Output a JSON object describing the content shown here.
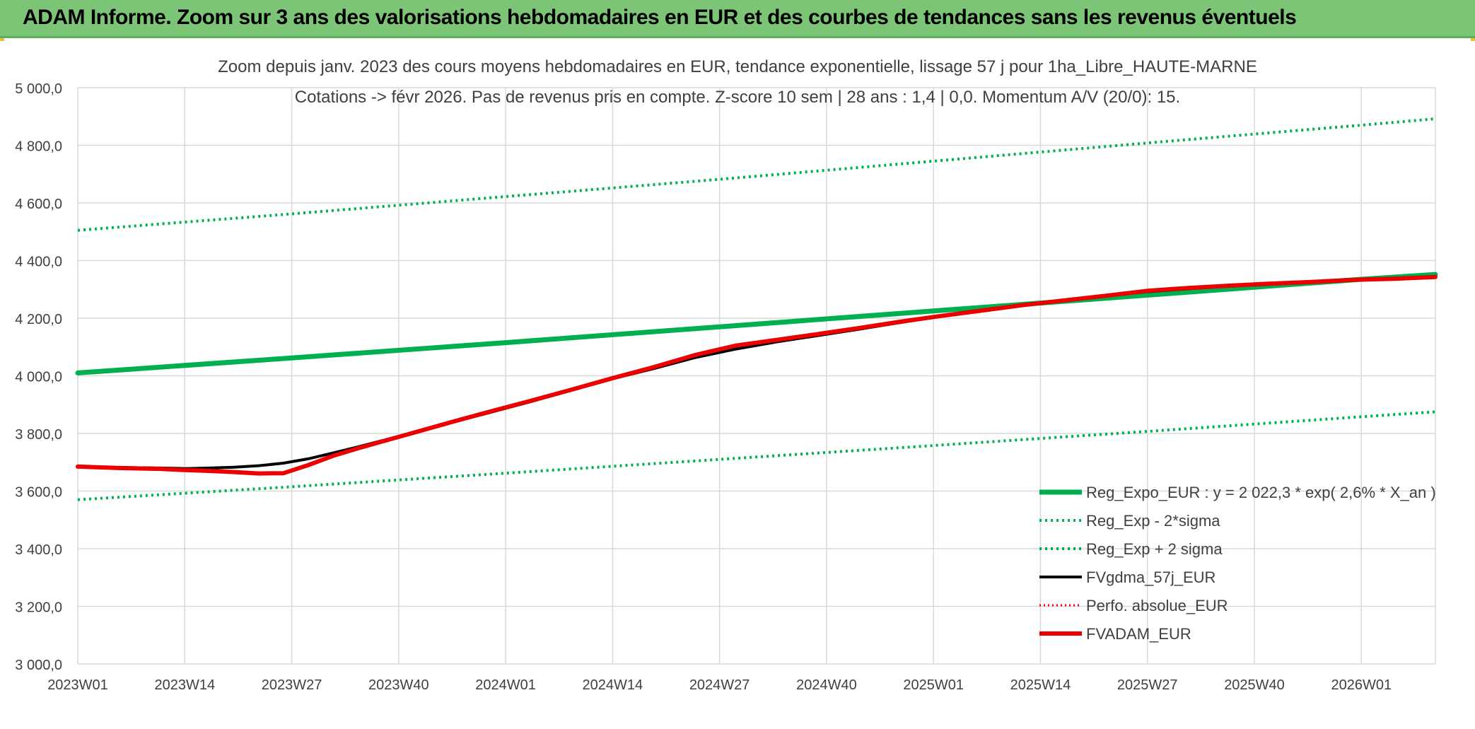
{
  "banner": {
    "title": "ADAM Informe. Zoom sur 3 ans des valorisations hebdomadaires en EUR et des courbes de tendances sans les revenus éventuels"
  },
  "colors": {
    "banner_bg": "#7cc576",
    "trend": "#00b050",
    "band": "#00b050",
    "gdma": "#000000",
    "perf": "#ff0000",
    "fvadam": "#e60000",
    "grid": "#d9d9d9",
    "text": "#404040"
  },
  "chart_data": {
    "type": "line",
    "title": "Zoom depuis janv. 2023 des cours moyens hebdomadaires en EUR, tendance exponentielle, lissage 57 j pour 1ha_Libre_HAUTE-MARNE",
    "subtitle": "Cotations -> févr 2026. Pas de revenus pris en compte. Z-score 10 sem | 28 ans : 1,4 | 0,0. Momentum A/V (20/0): 15.",
    "xlabel": "",
    "ylabel": "",
    "ylim": [
      3000,
      5000
    ],
    "yticks": [
      "5 000,0",
      "4 800,0",
      "4 600,0",
      "4 400,0",
      "4 200,0",
      "4 000,0",
      "3 800,0",
      "3 600,0",
      "3 400,0",
      "3 200,0",
      "3 000,0"
    ],
    "ytick_values": [
      5000,
      4800,
      4600,
      4400,
      4200,
      4000,
      3800,
      3600,
      3400,
      3200,
      3000
    ],
    "xticks": [
      "2023W01",
      "2023W14",
      "2023W27",
      "2023W40",
      "2024W01",
      "2024W14",
      "2024W27",
      "2024W40",
      "2025W01",
      "2025W14",
      "2025W27",
      "2025W40",
      "2026W01"
    ],
    "x_week_index_of_ticks": [
      0,
      13,
      26,
      39,
      52,
      65,
      78,
      91,
      104,
      117,
      130,
      143,
      156
    ],
    "x_week_count": 165,
    "grid": true,
    "legend_position": "bottom-right",
    "legend": [
      {
        "label": "Reg_Expo_EUR : y = 2 022,3 * exp( 2,6% *  X_an )",
        "style": "solid-thick",
        "color": "#00b050"
      },
      {
        "label": "Reg_Exp - 2*sigma",
        "style": "dotted",
        "color": "#00b050"
      },
      {
        "label": "Reg_Exp + 2 sigma",
        "style": "dotted",
        "color": "#00b050"
      },
      {
        "label": "FVgdma_57j_EUR",
        "style": "solid",
        "color": "#000000"
      },
      {
        "label": "Perfo. absolue_EUR",
        "style": "dotted",
        "color": "#ff0000"
      },
      {
        "label": "FVADAM_EUR",
        "style": "solid-thick",
        "color": "#e60000"
      }
    ],
    "series": [
      {
        "name": "Reg_Expo_EUR : y = 2 022,3 * exp( 2,6% *  X_an )",
        "x_weeks": [
          0,
          26,
          52,
          78,
          104,
          130,
          156,
          165
        ],
        "values": [
          4010,
          4062,
          4115,
          4170,
          4225,
          4280,
          4335,
          4352
        ]
      },
      {
        "name": "Reg_Exp - 2*sigma",
        "x_weeks": [
          0,
          26,
          52,
          78,
          104,
          130,
          156,
          165
        ],
        "values": [
          3570,
          3615,
          3662,
          3710,
          3758,
          3807,
          3858,
          3875
        ]
      },
      {
        "name": "Reg_Exp + 2 sigma",
        "x_weeks": [
          0,
          26,
          52,
          78,
          104,
          130,
          156,
          165
        ],
        "values": [
          4505,
          4562,
          4622,
          4682,
          4745,
          4808,
          4870,
          4892
        ]
      },
      {
        "name": "FVgdma_57j_EUR",
        "x_weeks": [
          0,
          5,
          10,
          13,
          16,
          19,
          22,
          25,
          28,
          31,
          34,
          37,
          40,
          45,
          50,
          55,
          60,
          65,
          70,
          75,
          80,
          85,
          90,
          95,
          100,
          105,
          110,
          115,
          120,
          125,
          130,
          135,
          140,
          145,
          150,
          155,
          160,
          165
        ],
        "values": [
          3685,
          3682,
          3680,
          3678,
          3680,
          3683,
          3688,
          3697,
          3712,
          3732,
          3753,
          3775,
          3797,
          3835,
          3872,
          3910,
          3950,
          3990,
          4025,
          4063,
          4093,
          4118,
          4140,
          4162,
          4185,
          4207,
          4228,
          4245,
          4262,
          4278,
          4292,
          4302,
          4312,
          4318,
          4325,
          4333,
          4338,
          4345
        ]
      },
      {
        "name": "Perfo. absolue_EUR",
        "x_weeks": [
          0,
          5,
          10,
          13,
          16,
          19,
          22,
          25,
          28,
          31,
          34,
          37,
          40,
          45,
          50,
          55,
          60,
          65,
          70,
          75,
          80,
          85,
          90,
          95,
          100,
          105,
          110,
          115,
          120,
          125,
          130,
          135,
          140,
          145,
          150,
          155,
          160,
          165
        ],
        "values": [
          3685,
          3680,
          3677,
          3673,
          3670,
          3666,
          3661,
          3662,
          3690,
          3722,
          3748,
          3772,
          3796,
          3836,
          3875,
          3913,
          3952,
          3992,
          4030,
          4072,
          4105,
          4125,
          4145,
          4166,
          4188,
          4208,
          4227,
          4246,
          4262,
          4278,
          4295,
          4305,
          4313,
          4320,
          4326,
          4333,
          4337,
          4343
        ]
      },
      {
        "name": "FVADAM_EUR",
        "x_weeks": [
          0,
          5,
          10,
          13,
          16,
          19,
          22,
          25,
          28,
          31,
          34,
          37,
          40,
          45,
          50,
          55,
          60,
          65,
          70,
          75,
          80,
          85,
          90,
          95,
          100,
          105,
          110,
          115,
          120,
          125,
          130,
          135,
          140,
          145,
          150,
          155,
          160,
          165
        ],
        "values": [
          3685,
          3680,
          3677,
          3673,
          3670,
          3666,
          3661,
          3662,
          3690,
          3722,
          3748,
          3772,
          3796,
          3836,
          3875,
          3913,
          3952,
          3992,
          4030,
          4072,
          4105,
          4125,
          4145,
          4166,
          4188,
          4208,
          4227,
          4246,
          4262,
          4278,
          4295,
          4305,
          4313,
          4320,
          4326,
          4333,
          4337,
          4343
        ]
      }
    ]
  }
}
